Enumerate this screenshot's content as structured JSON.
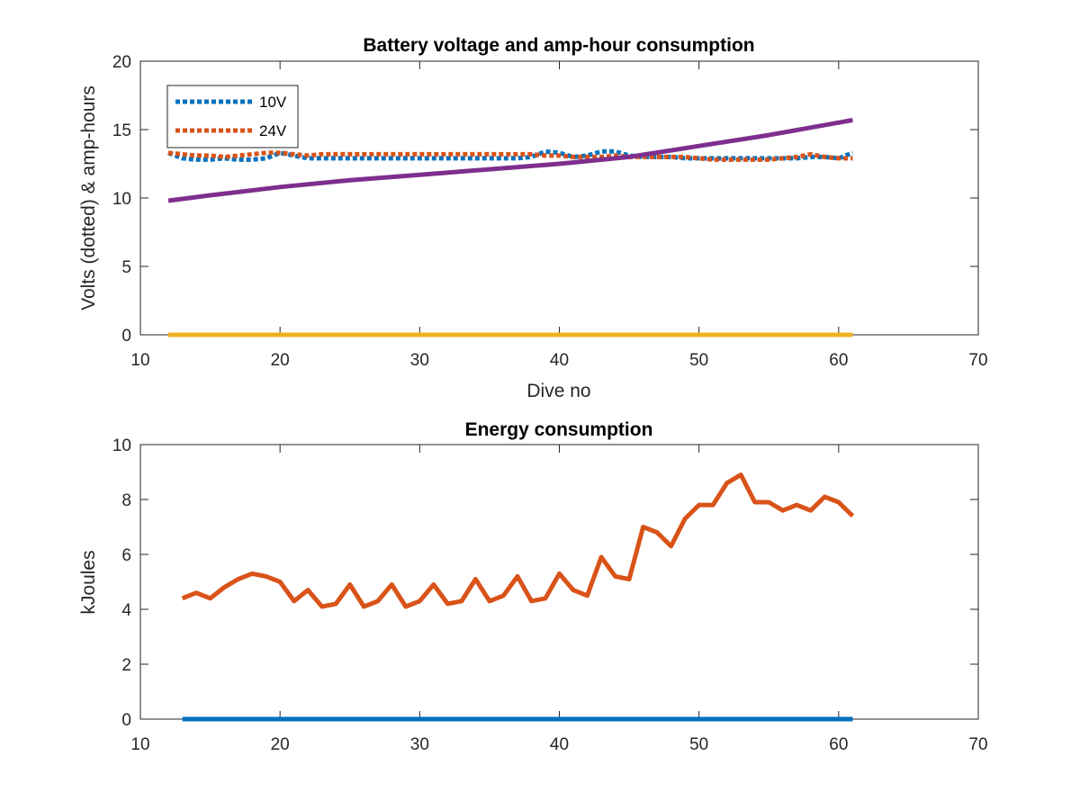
{
  "chart_data": [
    {
      "type": "line",
      "title": "Battery voltage and amp-hour consumption",
      "xlabel": "Dive no",
      "ylabel": "Volts (dotted) & amp-hours",
      "xlim": [
        10,
        70
      ],
      "ylim": [
        0,
        20
      ],
      "xticks": [
        10,
        20,
        30,
        40,
        50,
        60,
        70
      ],
      "yticks": [
        0,
        5,
        10,
        15,
        20
      ],
      "legend": {
        "placement": "top-left",
        "entries": [
          "10V",
          "24V"
        ]
      },
      "series": [
        {
          "name": "10V",
          "style": "dotted",
          "color": "#0072BD",
          "x": [
            12,
            13,
            14,
            15,
            16,
            17,
            18,
            19,
            20,
            21,
            22,
            23,
            24,
            25,
            26,
            27,
            28,
            29,
            30,
            31,
            32,
            33,
            34,
            35,
            36,
            37,
            38,
            39,
            40,
            41,
            42,
            43,
            44,
            45,
            46,
            47,
            48,
            49,
            50,
            51,
            52,
            53,
            54,
            55,
            56,
            57,
            58,
            59,
            60,
            61
          ],
          "y": [
            13.3,
            12.9,
            12.8,
            12.8,
            12.9,
            12.8,
            12.8,
            12.9,
            13.3,
            13.1,
            12.9,
            12.9,
            12.9,
            12.9,
            12.9,
            12.9,
            12.9,
            12.9,
            12.9,
            12.9,
            12.9,
            12.9,
            12.9,
            12.9,
            12.9,
            12.9,
            13.0,
            13.4,
            13.3,
            13.0,
            13.1,
            13.4,
            13.4,
            13.1,
            13.0,
            13.0,
            13.0,
            12.9,
            12.9,
            12.9,
            12.9,
            12.9,
            12.9,
            12.9,
            12.9,
            12.9,
            13.0,
            13.0,
            12.9,
            13.3
          ]
        },
        {
          "name": "24V",
          "style": "dotted",
          "color": "#D95319",
          "x": [
            12,
            13,
            14,
            15,
            16,
            17,
            18,
            19,
            20,
            21,
            22,
            23,
            24,
            25,
            26,
            27,
            28,
            29,
            30,
            31,
            32,
            33,
            34,
            35,
            36,
            37,
            38,
            39,
            40,
            41,
            42,
            43,
            44,
            45,
            46,
            47,
            48,
            49,
            50,
            51,
            52,
            53,
            54,
            55,
            56,
            57,
            58,
            59,
            60,
            61
          ],
          "y": [
            13.3,
            13.2,
            13.1,
            13.1,
            13.0,
            13.1,
            13.2,
            13.3,
            13.3,
            13.2,
            13.1,
            13.2,
            13.2,
            13.2,
            13.2,
            13.2,
            13.2,
            13.2,
            13.2,
            13.2,
            13.2,
            13.2,
            13.2,
            13.2,
            13.2,
            13.2,
            13.2,
            13.1,
            13.1,
            13.0,
            13.0,
            13.0,
            13.1,
            13.0,
            13.0,
            13.0,
            13.0,
            13.0,
            12.9,
            12.8,
            12.8,
            12.8,
            12.8,
            12.8,
            12.9,
            13.0,
            13.2,
            13.0,
            12.9,
            12.9
          ]
        },
        {
          "style": "solid",
          "color": "#7E2F8E",
          "x": [
            12,
            15,
            20,
            25,
            30,
            35,
            40,
            45,
            50,
            55,
            61
          ],
          "y": [
            9.8,
            10.2,
            10.8,
            11.3,
            11.7,
            12.1,
            12.5,
            13.0,
            13.8,
            14.6,
            15.7
          ]
        },
        {
          "style": "solid",
          "color": "#EDB120",
          "x": [
            12,
            61
          ],
          "y": [
            0,
            0
          ]
        }
      ]
    },
    {
      "type": "line",
      "title": "Energy consumption",
      "xlabel": "",
      "ylabel": "kJoules",
      "xlim": [
        10,
        70
      ],
      "ylim": [
        0,
        10
      ],
      "xticks": [
        10,
        20,
        30,
        40,
        50,
        60,
        70
      ],
      "yticks": [
        0,
        2,
        4,
        6,
        8,
        10
      ],
      "series": [
        {
          "style": "solid",
          "color": "#D95319",
          "x": [
            13,
            14,
            15,
            16,
            17,
            18,
            19,
            20,
            21,
            22,
            23,
            24,
            25,
            26,
            27,
            28,
            29,
            30,
            31,
            32,
            33,
            34,
            35,
            36,
            37,
            38,
            39,
            40,
            41,
            42,
            43,
            44,
            45,
            46,
            47,
            48,
            49,
            50,
            51,
            52,
            53,
            54,
            55,
            56,
            57,
            58,
            59,
            60,
            61
          ],
          "y": [
            4.4,
            4.6,
            4.4,
            4.8,
            5.1,
            5.3,
            5.2,
            5.0,
            4.3,
            4.7,
            4.1,
            4.2,
            4.9,
            4.1,
            4.3,
            4.9,
            4.1,
            4.3,
            4.9,
            4.2,
            4.3,
            5.1,
            4.3,
            4.5,
            5.2,
            4.3,
            4.4,
            5.3,
            4.7,
            4.5,
            5.9,
            5.2,
            5.1,
            7.0,
            6.8,
            6.3,
            7.3,
            7.8,
            7.8,
            8.6,
            8.9,
            7.9,
            7.9,
            7.6,
            7.8,
            7.6,
            8.1,
            7.9,
            7.4
          ]
        },
        {
          "style": "solid",
          "color": "#0072BD",
          "x": [
            13,
            61
          ],
          "y": [
            0,
            0
          ]
        }
      ]
    }
  ]
}
